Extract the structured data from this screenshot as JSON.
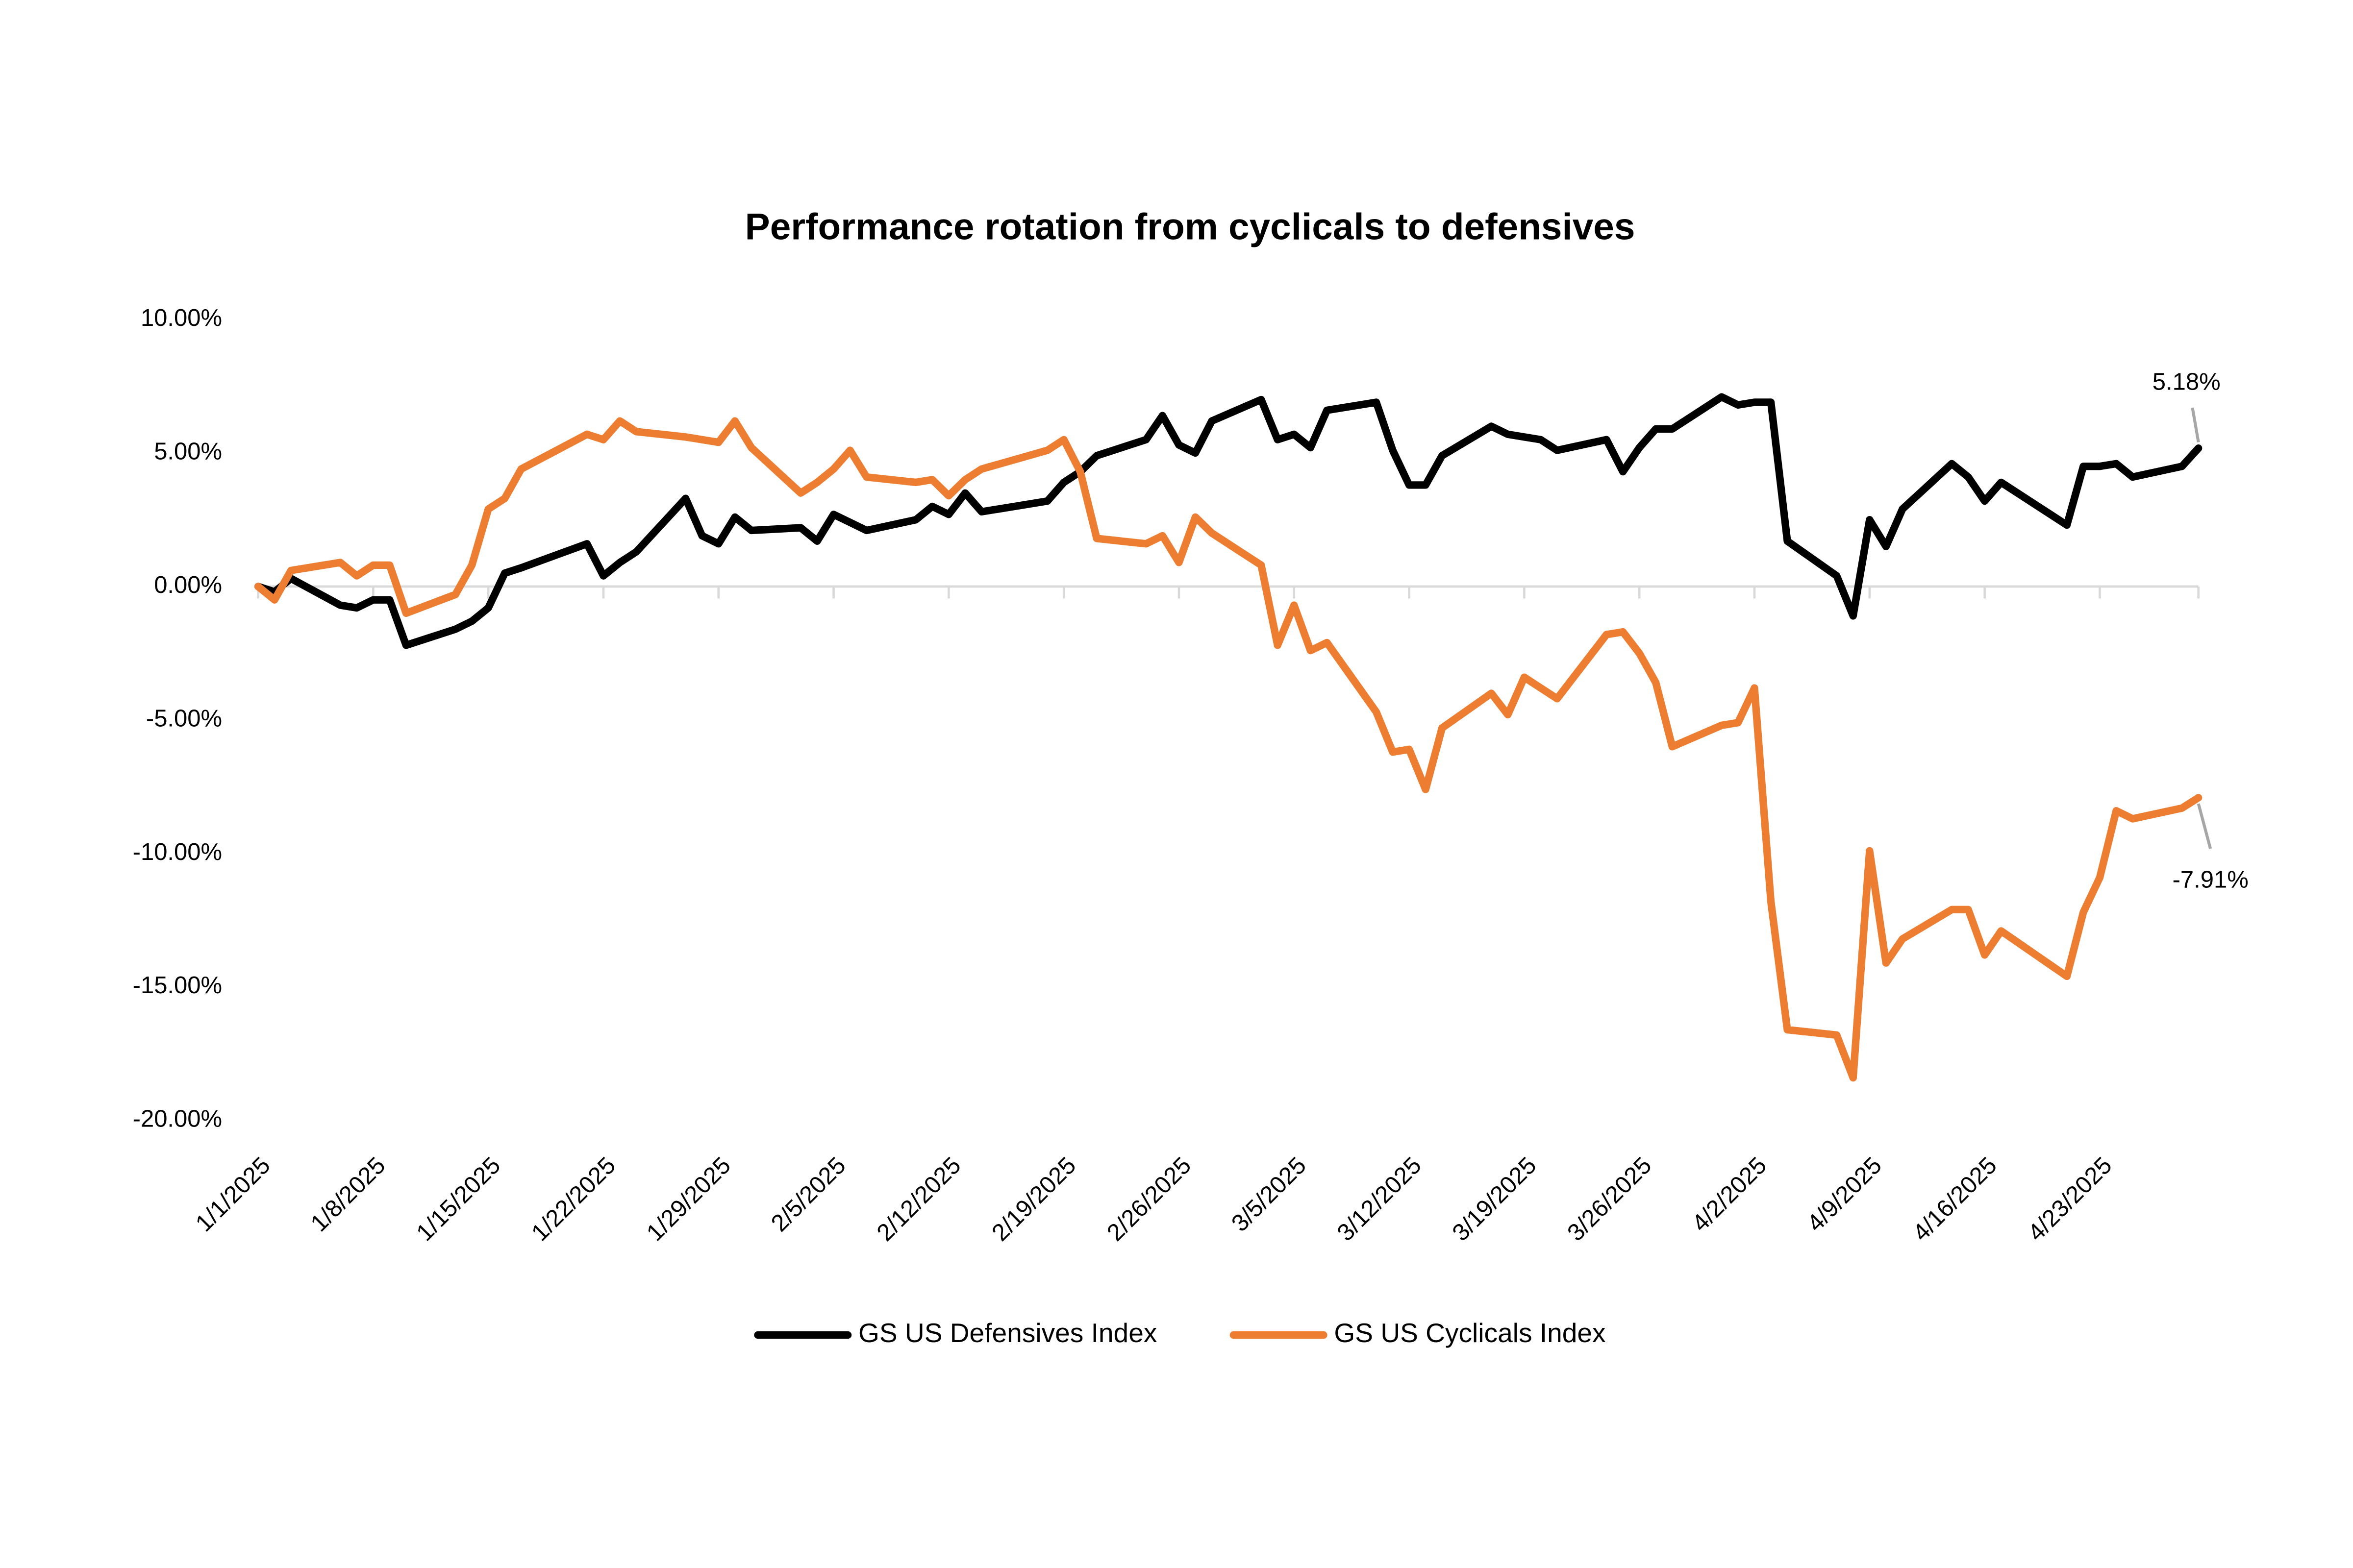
{
  "chart_data": {
    "type": "line",
    "title": "Performance rotation from cyclicals to defensives",
    "x": [
      "1/1/2025",
      "1/2/2025",
      "1/3/2025",
      "1/6/2025",
      "1/7/2025",
      "1/8/2025",
      "1/9/2025",
      "1/10/2025",
      "1/13/2025",
      "1/14/2025",
      "1/15/2025",
      "1/16/2025",
      "1/17/2025",
      "1/21/2025",
      "1/22/2025",
      "1/23/2025",
      "1/24/2025",
      "1/27/2025",
      "1/28/2025",
      "1/29/2025",
      "1/30/2025",
      "1/31/2025",
      "2/3/2025",
      "2/4/2025",
      "2/5/2025",
      "2/6/2025",
      "2/7/2025",
      "2/10/2025",
      "2/11/2025",
      "2/12/2025",
      "2/13/2025",
      "2/14/2025",
      "2/18/2025",
      "2/19/2025",
      "2/20/2025",
      "2/21/2025",
      "2/24/2025",
      "2/25/2025",
      "2/26/2025",
      "2/27/2025",
      "2/28/2025",
      "3/3/2025",
      "3/4/2025",
      "3/5/2025",
      "3/6/2025",
      "3/7/2025",
      "3/10/2025",
      "3/11/2025",
      "3/12/2025",
      "3/13/2025",
      "3/14/2025",
      "3/17/2025",
      "3/18/2025",
      "3/19/2025",
      "3/20/2025",
      "3/21/2025",
      "3/24/2025",
      "3/25/2025",
      "3/26/2025",
      "3/27/2025",
      "3/28/2025",
      "3/31/2025",
      "4/1/2025",
      "4/2/2025",
      "4/3/2025",
      "4/4/2025",
      "4/7/2025",
      "4/8/2025",
      "4/9/2025",
      "4/10/2025",
      "4/11/2025",
      "4/14/2025",
      "4/15/2025",
      "4/16/2025",
      "4/17/2025",
      "4/21/2025",
      "4/22/2025",
      "4/23/2025",
      "4/24/2025",
      "4/25/2025",
      "4/28/2025",
      "4/29/2025"
    ],
    "series": [
      {
        "name": "GS US Defensives Index",
        "color": "#000000",
        "values": [
          0,
          -0.2,
          0.3,
          -0.7,
          -0.8,
          -0.5,
          -0.5,
          -2.2,
          -1.6,
          -1.3,
          -0.8,
          0.5,
          0.7,
          1.6,
          0.4,
          0.9,
          1.3,
          3.3,
          1.9,
          1.6,
          2.6,
          2.1,
          2.2,
          1.7,
          2.7,
          2.4,
          2.1,
          2.5,
          3.0,
          2.7,
          3.5,
          2.8,
          3.2,
          3.9,
          4.3,
          4.9,
          5.5,
          6.4,
          5.3,
          5.0,
          6.2,
          7.0,
          5.5,
          5.7,
          5.2,
          6.6,
          6.9,
          5.1,
          3.8,
          3.8,
          4.9,
          6.0,
          5.7,
          5.6,
          5.5,
          5.1,
          5.5,
          4.3,
          5.2,
          5.9,
          5.9,
          7.1,
          6.8,
          6.9,
          6.9,
          1.7,
          0.4,
          -1.1,
          2.5,
          1.5,
          2.9,
          4.6,
          4.1,
          3.2,
          3.9,
          2.3,
          4.5,
          4.5,
          4.6,
          4.1,
          4.5,
          5.18
        ],
        "value_labels": [
          null,
          null,
          null,
          null,
          null,
          null,
          null,
          null,
          null,
          null,
          null,
          null,
          null,
          null,
          null,
          null,
          null,
          null,
          null,
          null,
          null,
          null,
          null,
          null,
          null,
          null,
          null,
          null,
          null,
          null,
          null,
          null,
          null,
          null,
          null,
          null,
          null,
          null,
          null,
          null,
          null,
          null,
          null,
          null,
          null,
          null,
          null,
          null,
          null,
          null,
          null,
          null,
          null,
          null,
          null,
          null,
          null,
          null,
          null,
          null,
          null,
          null,
          null,
          null,
          null,
          null,
          null,
          null,
          null,
          null,
          null,
          null,
          null,
          null,
          null,
          null,
          null,
          null,
          null,
          null,
          null,
          "5.18%"
        ]
      },
      {
        "name": "GS US Cyclicals Index",
        "color": "#ed7d31",
        "values": [
          0,
          -0.5,
          0.6,
          0.9,
          0.4,
          0.8,
          0.8,
          -1.0,
          -0.3,
          0.8,
          2.9,
          3.3,
          4.4,
          5.7,
          5.5,
          6.2,
          5.8,
          5.6,
          5.5,
          5.4,
          6.2,
          5.2,
          3.5,
          3.9,
          4.4,
          5.1,
          4.1,
          3.9,
          4.0,
          3.4,
          4.0,
          4.4,
          5.1,
          5.5,
          4.3,
          1.8,
          1.6,
          1.9,
          0.9,
          2.6,
          2.0,
          0.8,
          -2.2,
          -0.7,
          -2.4,
          -2.1,
          -4.7,
          -6.2,
          -6.1,
          -7.6,
          -5.3,
          -4.0,
          -4.8,
          -3.4,
          -3.8,
          -4.2,
          -1.8,
          -1.7,
          -2.5,
          -3.6,
          -6.0,
          -5.2,
          -5.1,
          -3.8,
          -11.8,
          -16.6,
          -16.8,
          -18.4,
          -9.9,
          -14.1,
          -13.2,
          -12.1,
          -12.1,
          -13.8,
          -12.9,
          -14.6,
          -12.2,
          -10.9,
          -8.4,
          -8.7,
          -8.3,
          -7.91
        ],
        "value_labels": [
          null,
          null,
          null,
          null,
          null,
          null,
          null,
          null,
          null,
          null,
          null,
          null,
          null,
          null,
          null,
          null,
          null,
          null,
          null,
          null,
          null,
          null,
          null,
          null,
          null,
          null,
          null,
          null,
          null,
          null,
          null,
          null,
          null,
          null,
          null,
          null,
          null,
          null,
          null,
          null,
          null,
          null,
          null,
          null,
          null,
          null,
          null,
          null,
          null,
          null,
          null,
          null,
          null,
          null,
          null,
          null,
          null,
          null,
          null,
          null,
          null,
          null,
          null,
          null,
          null,
          null,
          null,
          null,
          null,
          null,
          null,
          null,
          null,
          null,
          null,
          null,
          null,
          null,
          null,
          null,
          null,
          "-7.91%"
        ]
      }
    ],
    "xlim": [
      "1/1/2025",
      "4/29/2025"
    ],
    "xticks": [
      "1/1/2025",
      "1/8/2025",
      "1/15/2025",
      "1/22/2025",
      "1/29/2025",
      "2/5/2025",
      "2/12/2025",
      "2/19/2025",
      "2/26/2025",
      "3/5/2025",
      "3/12/2025",
      "3/19/2025",
      "3/26/2025",
      "4/2/2025",
      "4/9/2025",
      "4/16/2025",
      "4/23/2025"
    ],
    "ylim": [
      -20,
      10
    ],
    "yticks": [
      {
        "value": -20,
        "label": "-20.00%"
      },
      {
        "value": -15,
        "label": "-15.00%"
      },
      {
        "value": -10,
        "label": "-10.00%"
      },
      {
        "value": -5,
        "label": "-5.00%"
      },
      {
        "value": 0,
        "label": "0.00%"
      },
      {
        "value": 5,
        "label": "5.00%"
      },
      {
        "value": 10,
        "label": "10.00%"
      }
    ],
    "grid": false,
    "legend": "bottom"
  }
}
